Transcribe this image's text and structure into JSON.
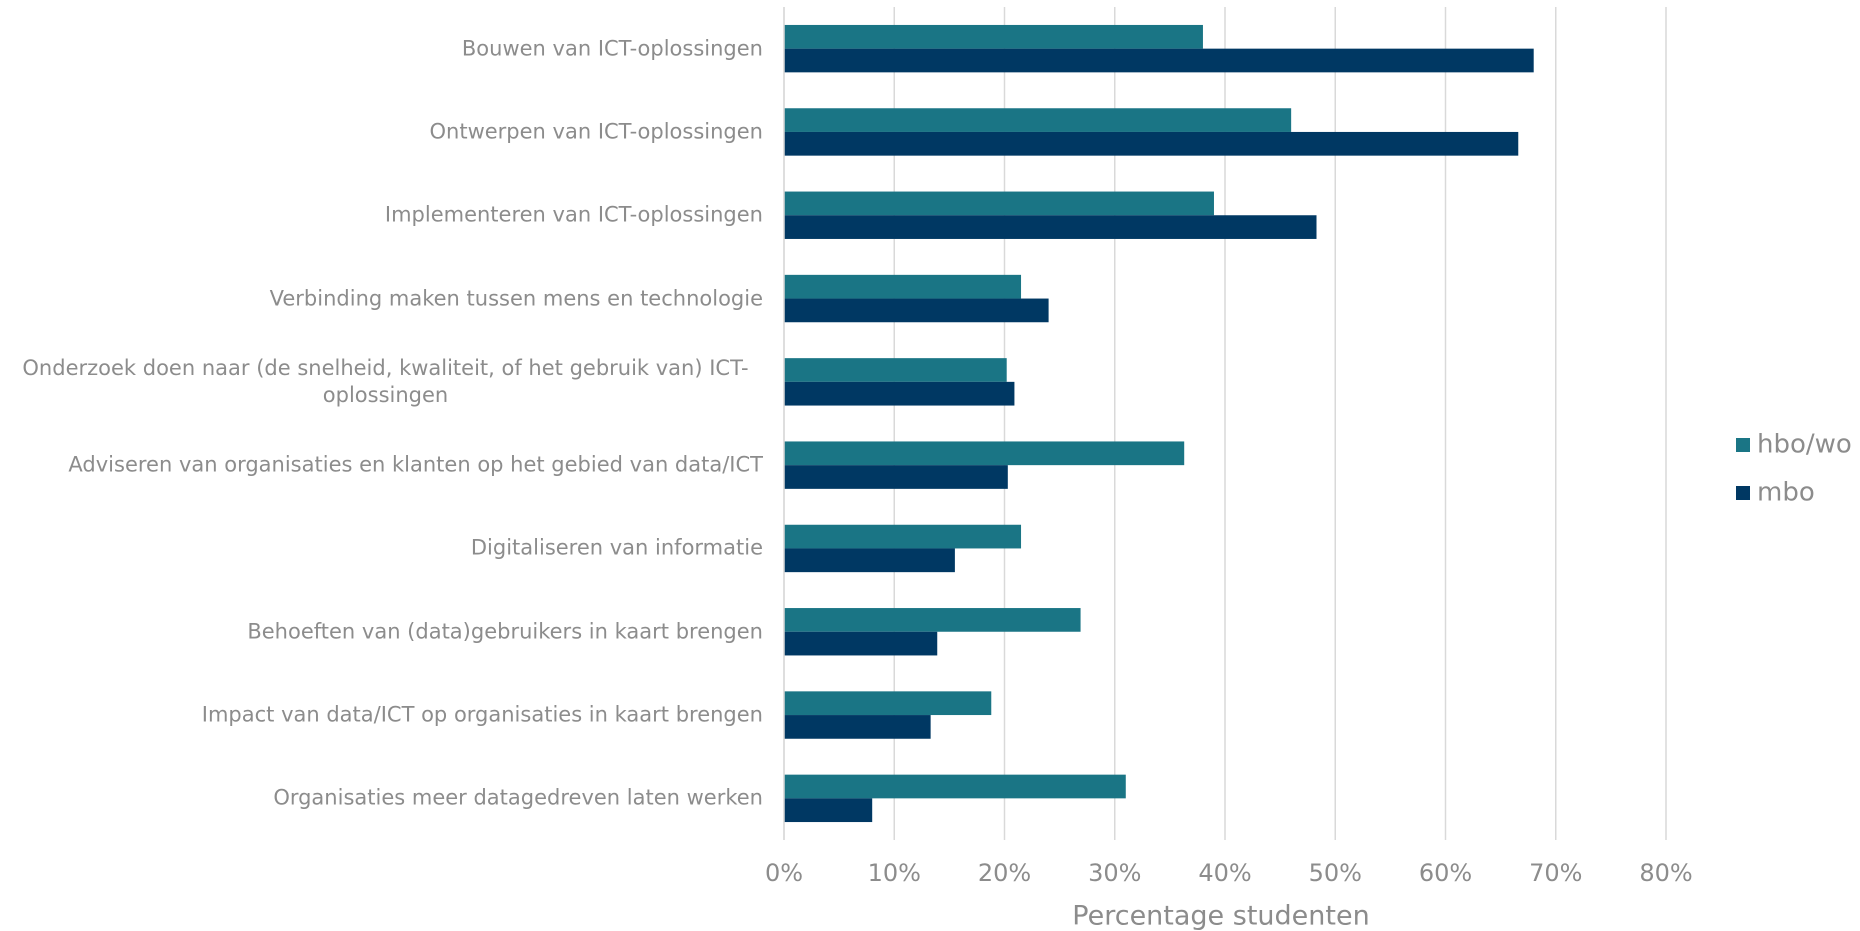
{
  "chart_data": {
    "type": "hbar",
    "categories": [
      "Bouwen van ICT-oplossingen",
      "Ontwerpen van ICT-oplossingen",
      "Implementeren van ICT-oplossingen",
      "Verbinding maken tussen mens en technologie",
      "Onderzoek doen naar (de snelheid, kwaliteit, of het gebruik van) ICT-oplossingen",
      "Adviseren van organisaties en klanten op het gebied van data/ICT",
      "Digitaliseren van informatie",
      "Behoeften van (data)gebruikers in kaart brengen",
      "Impact van data/ICT op organisaties in kaart brengen",
      "Organisaties meer datagedreven laten werken"
    ],
    "series": [
      {
        "name": "hbo/wo",
        "color": "#1a7585",
        "values": [
          38,
          46,
          39,
          21.5,
          20.2,
          36.3,
          21.5,
          26.9,
          18.8,
          31
        ]
      },
      {
        "name": "mbo",
        "color": "#003863",
        "values": [
          68,
          66.6,
          48.3,
          24,
          20.9,
          20.3,
          15.5,
          13.9,
          13.3,
          8
        ]
      }
    ],
    "xlabel": "Percentage studenten",
    "xlim": [
      0,
      80
    ],
    "xticks": [
      {
        "value": 0,
        "label": "0%"
      },
      {
        "value": 10,
        "label": "10%"
      },
      {
        "value": 20,
        "label": "20%"
      },
      {
        "value": 30,
        "label": "30%"
      },
      {
        "value": 40,
        "label": "40%"
      },
      {
        "value": 50,
        "label": "50%"
      },
      {
        "value": 60,
        "label": "60%"
      },
      {
        "value": 70,
        "label": "70%"
      },
      {
        "value": 80,
        "label": "80%"
      }
    ],
    "grid": true,
    "legend": "right"
  }
}
